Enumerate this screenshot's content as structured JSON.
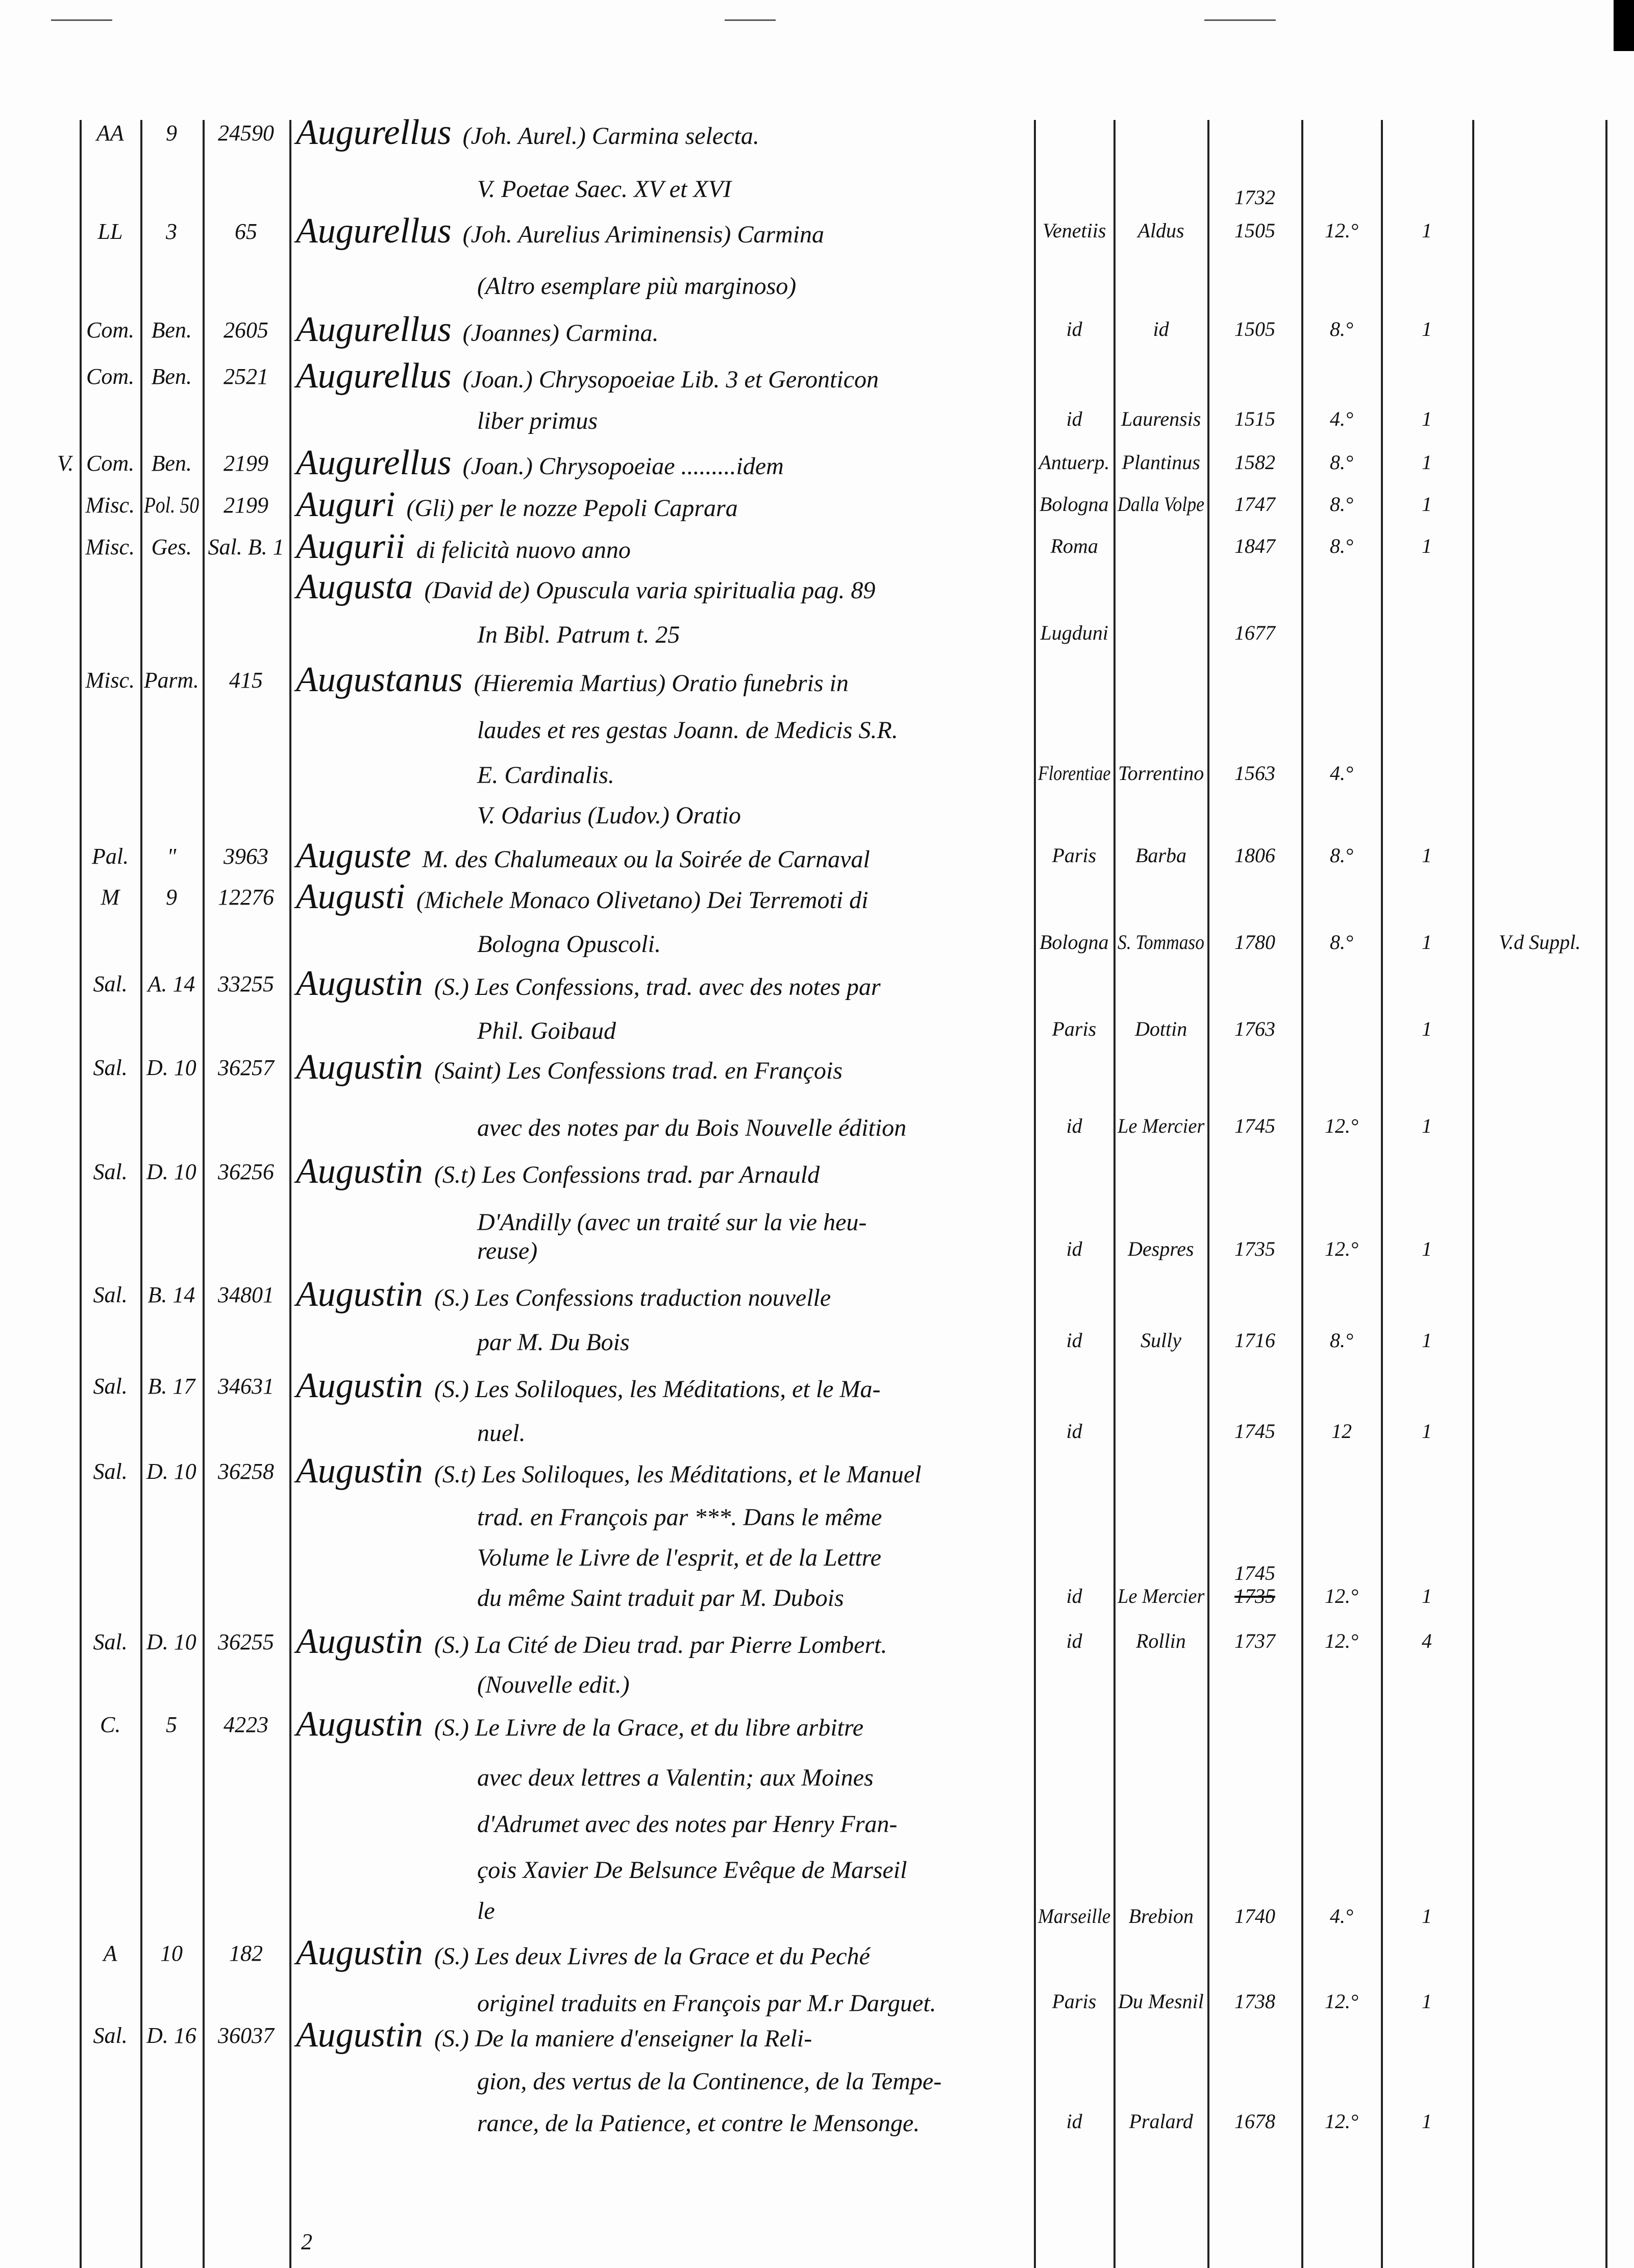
{
  "page_number": "2",
  "entries": [
    {
      "shelf": "AA",
      "case": "9",
      "number": "24590",
      "heading": "Augurellus",
      "lines": [
        "(Joh. Aurel.) Carmina selecta.",
        "V. Poetae Saec. XV et XVI"
      ],
      "place": "",
      "printer": "",
      "year": "",
      "format": "",
      "vols": "",
      "extra": ""
    },
    {
      "shelf": "LL",
      "case": "3",
      "number": "65",
      "heading": "Augurellus",
      "lines": [
        "(Joh. Aurelius Ariminensis) Carmina",
        "(Altro esemplare più marginoso)"
      ],
      "place": "Venetiis",
      "printer": "Aldus",
      "year_above": "1732",
      "year": "1505",
      "format": "12.°",
      "vols": "1",
      "extra": ""
    },
    {
      "shelf": "Com.",
      "case": "Ben.",
      "number": "2605",
      "heading": "Augurellus",
      "lines": [
        "(Joannes) Carmina."
      ],
      "place": "id",
      "printer": "id",
      "year": "1505",
      "format": "8.°",
      "vols": "1",
      "extra": ""
    },
    {
      "shelf": "Com.",
      "case": "Ben.",
      "number": "2521",
      "heading": "Augurellus",
      "lines": [
        "(Joan.) Chrysopoeiae Lib. 3 et Geronticon",
        "liber primus"
      ],
      "place": "id",
      "printer": "Laurensis",
      "year": "1515",
      "format": "4.°",
      "vols": "1",
      "extra": ""
    },
    {
      "margin": "V.",
      "shelf": "Com.",
      "case": "Ben.",
      "number": "2199",
      "heading": "Augurellus",
      "lines": [
        "(Joan.) Chrysopoeiae .........idem"
      ],
      "place": "Antuerp.",
      "printer": "Plantinus",
      "year": "1582",
      "format": "8.°",
      "vols": "1",
      "extra": ""
    },
    {
      "shelf": "Misc.",
      "case": "Pol. 50",
      "number": "2199",
      "heading": "Auguri",
      "lines": [
        "(Gli) per le nozze Pepoli Caprara"
      ],
      "place": "Bologna",
      "printer": "Dalla Volpe",
      "year": "1747",
      "format": "8.°",
      "vols": "1",
      "extra": ""
    },
    {
      "shelf": "Misc.",
      "case": "Ges.",
      "number": "Sal. B. 1",
      "heading": "Augurii",
      "lines": [
        "di felicità  nuovo anno"
      ],
      "place": "Roma",
      "printer": "",
      "year": "1847",
      "format": "8.°",
      "vols": "1",
      "extra": ""
    },
    {
      "shelf": "",
      "case": "",
      "number": "",
      "heading": "Augusta",
      "lines": [
        "(David de) Opuscula varia spiritualia pag. 89",
        "In Bibl. Patrum t. 25"
      ],
      "place": "Lugduni",
      "printer": "",
      "year": "1677",
      "format": "",
      "vols": "",
      "extra": ""
    },
    {
      "shelf": "Misc.",
      "case": "Parm.",
      "number": "415",
      "heading": "Augustanus",
      "lines": [
        "(Hieremia Martius) Oratio funebris in",
        "laudes et res gestas Joann. de Medicis S.R.",
        "E. Cardinalis.",
        "V. Odarius (Ludov.) Oratio"
      ],
      "place": "Florentiae",
      "printer": "Torrentino",
      "year": "1563",
      "format": "4.°",
      "vols": "",
      "extra": ""
    },
    {
      "shelf": "Pal.",
      "case": "\"",
      "number": "3963",
      "heading": "Auguste",
      "lines": [
        "M. des Chalumeaux ou la Soirée de Carnaval"
      ],
      "place": "Paris",
      "printer": "Barba",
      "year": "1806",
      "format": "8.°",
      "vols": "1",
      "extra": ""
    },
    {
      "shelf": "M",
      "case": "9",
      "number": "12276",
      "heading": "Augusti",
      "lines": [
        "(Michele Monaco Olivetano) Dei Terremoti di",
        "Bologna Opuscoli."
      ],
      "place": "Bologna",
      "printer": "S. Tommaso",
      "year": "1780",
      "format": "8.°",
      "vols": "1",
      "extra": "V.d Suppl."
    },
    {
      "shelf": "Sal.",
      "case": "A. 14",
      "number": "33255",
      "heading": "Augustin",
      "lines": [
        "(S.) Les Confessions, trad. avec des notes par",
        "Phil. Goibaud"
      ],
      "place": "Paris",
      "printer": "Dottin",
      "year": "1763",
      "format": "",
      "vols": "1",
      "extra": ""
    },
    {
      "shelf": "Sal.",
      "case": "D. 10",
      "number": "36257",
      "heading": "Augustin",
      "lines": [
        "(Saint) Les Confessions trad. en François",
        "avec des notes par du Bois Nouvelle édition"
      ],
      "place": "id",
      "printer": "Le Mercier",
      "year": "1745",
      "format": "12.°",
      "vols": "1",
      "extra": ""
    },
    {
      "shelf": "Sal.",
      "case": "D. 10",
      "number": "36256",
      "heading": "Augustin",
      "lines": [
        "(S.t) Les Confessions trad. par Arnauld",
        "D'Andilly (avec un traité sur la vie heu-",
        "reuse)"
      ],
      "place": "id",
      "printer": "Despres",
      "year": "1735",
      "format": "12.°",
      "vols": "1",
      "extra": ""
    },
    {
      "shelf": "Sal.",
      "case": "B. 14",
      "number": "34801",
      "heading": "Augustin",
      "lines": [
        "(S.) Les Confessions traduction nouvelle",
        "par M. Du Bois"
      ],
      "place": "id",
      "printer": "Sully",
      "year": "1716",
      "format": "8.°",
      "vols": "1",
      "extra": ""
    },
    {
      "shelf": "Sal.",
      "case": "B. 17",
      "number": "34631",
      "heading": "Augustin",
      "lines": [
        "(S.) Les Soliloques, les Méditations, et le Ma-",
        "nuel."
      ],
      "place": "id",
      "printer": "",
      "year": "1745",
      "format": "12",
      "vols": "1",
      "extra": ""
    },
    {
      "shelf": "Sal.",
      "case": "D. 10",
      "number": "36258",
      "heading": "Augustin",
      "lines": [
        "(S.t) Les Soliloques, les Méditations, et le Manuel",
        "trad. en François par ***. Dans le même",
        "Volume le Livre de l'esprit, et de la Lettre",
        "du même Saint traduit par M. Dubois"
      ],
      "place": "id",
      "printer": "Le Mercier",
      "year_above": "1745",
      "year": "1735",
      "year_struck": true,
      "format": "12.°",
      "vols": "1",
      "extra": ""
    },
    {
      "shelf": "Sal.",
      "case": "D. 10",
      "number": "36255",
      "heading": "Augustin",
      "lines": [
        "(S.) La Cité de Dieu trad. par Pierre Lombert.",
        "(Nouvelle edit.)"
      ],
      "place": "id",
      "printer": "Rollin",
      "year": "1737",
      "format": "12.°",
      "vols": "4",
      "extra": ""
    },
    {
      "shelf": "C.",
      "case": "5",
      "number": "4223",
      "heading": "Augustin",
      "lines": [
        "(S.) Le Livre de la Grace, et du libre arbitre",
        "avec deux lettres a Valentin;  aux Moines",
        "d'Adrumet avec des notes par Henry Fran-",
        "çois Xavier De Belsunce Evêque de Marseil",
        "le"
      ],
      "place": "Marseille",
      "printer": "Brebion",
      "year": "1740",
      "format": "4.°",
      "vols": "1",
      "extra": ""
    },
    {
      "shelf": "A",
      "case": "10",
      "number": "182",
      "heading": "Augustin",
      "lines": [
        "(S.) Les deux Livres de la Grace et du Peché",
        "originel traduits en François par M.r Darguet."
      ],
      "place": "Paris",
      "printer": "Du Mesnil",
      "year": "1738",
      "format": "12.°",
      "vols": "1",
      "extra": ""
    },
    {
      "shelf": "Sal.",
      "case": "D. 16",
      "number": "36037",
      "heading": "Augustin",
      "lines": [
        "(S.) De la maniere d'enseigner la Reli-",
        "gion, des vertus de la Continence, de la Tempe-",
        "rance, de la Patience, et contre le Mensonge."
      ],
      "place": "id",
      "printer": "Pralard",
      "year": "1678",
      "format": "12.°",
      "vols": "1",
      "extra": ""
    }
  ]
}
